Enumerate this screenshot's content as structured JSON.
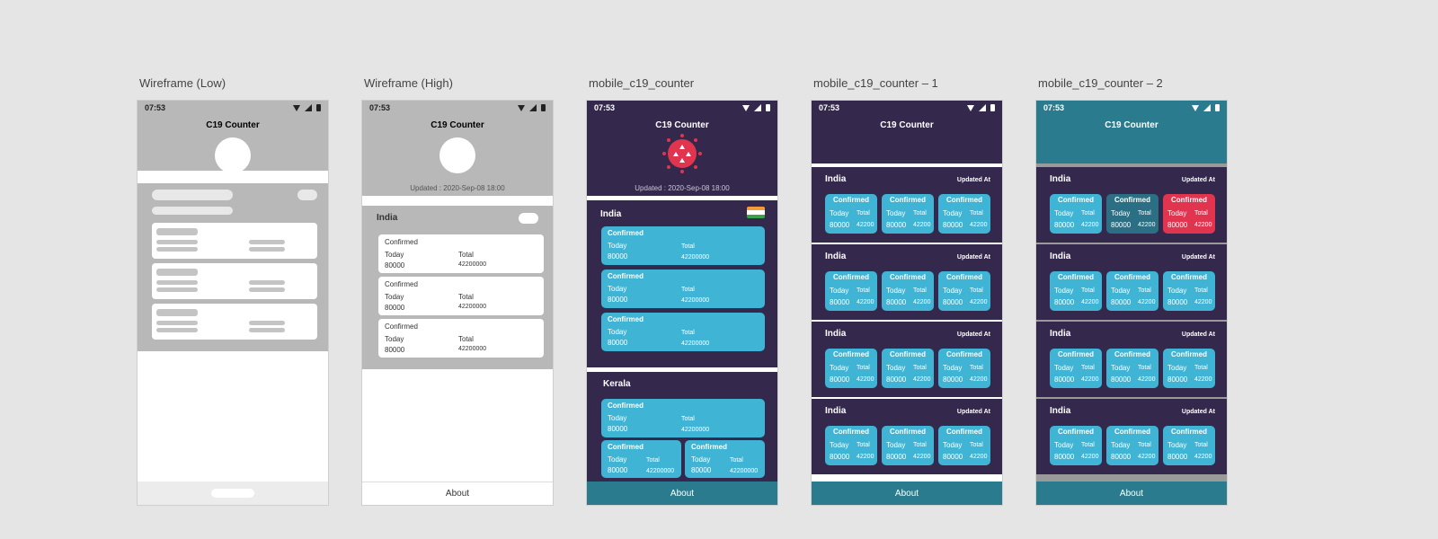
{
  "frames": {
    "low": "Wireframe (Low)",
    "high": "Wireframe (High)",
    "c19": "mobile_c19_counter",
    "c19_1": "mobile_c19_counter – 1",
    "c19_2": "mobile_c19_counter – 2"
  },
  "status": {
    "time": "07:53"
  },
  "app": {
    "title": "C19 Counter",
    "updated": "Updated : 2020-Sep-08 18:00",
    "about": "About",
    "updated_at": "Updated At"
  },
  "region": {
    "india": "India",
    "kerala": "Kerala"
  },
  "card": {
    "title": "Confirmed",
    "today_label": "Today",
    "total_label": "Total",
    "today": "80000",
    "total": "42200000",
    "total_short": "42200"
  },
  "colors": {
    "dark": "#34294d",
    "teal": "#2b7b8e",
    "card": "#40b4d4",
    "accent": "#e0344f",
    "selected_card": "#2a6f83"
  }
}
